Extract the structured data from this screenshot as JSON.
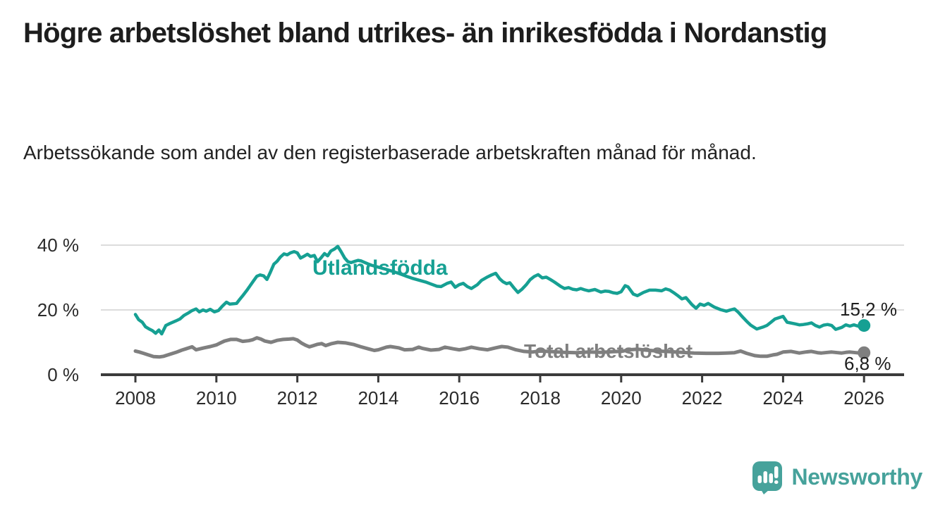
{
  "header": {
    "title": "Högre arbetslöshet bland utrikes- än inrikesfödda i Nordanstig",
    "subtitle": "Arbetssökande som andel av den registerbaserade arbetskraften månad för månad."
  },
  "footer": {
    "brand": "Newsworthy",
    "logo_icon": "bar-chart-speech-bubble-icon"
  },
  "colors": {
    "foreign_born_line": "#16a093",
    "total_line": "#7f7f7f",
    "grid": "#dcdcdc",
    "axis": "#3b3b3b",
    "text": "#1d1d1d",
    "brand_teal": "#46a29b"
  },
  "chart_data": {
    "type": "line",
    "title": "Högre arbetslöshet bland utrikes- än inrikesfödda i Nordanstig",
    "subtitle": "Arbetssökande som andel av den registerbaserade arbetskraften månad för månad.",
    "unit": "%",
    "grid": "horizontal-only",
    "legend_position": "inline-labels-on-lines",
    "x_axis": {
      "label": "",
      "tick_years": [
        2008,
        2010,
        2012,
        2014,
        2016,
        2018,
        2020,
        2022,
        2024,
        2026
      ],
      "range": [
        2007.1,
        2027.0
      ]
    },
    "y_axis": {
      "label": "",
      "unit": "%",
      "ticks": [
        {
          "label": "0 %",
          "value": 0
        },
        {
          "label": "20 %",
          "value": 20
        },
        {
          "label": "40 %",
          "value": 40
        }
      ],
      "grid_values": [
        20,
        40
      ],
      "range": [
        0,
        43
      ]
    },
    "series": [
      {
        "name": "Utlandsfödda",
        "color": "#16a093",
        "end_label": "15,2 %",
        "end_value": 15.2,
        "points": [
          [
            2008.0,
            18.6
          ],
          [
            2008.08,
            17.0
          ],
          [
            2008.17,
            16.2
          ],
          [
            2008.25,
            14.8
          ],
          [
            2008.33,
            14.2
          ],
          [
            2008.42,
            13.6
          ],
          [
            2008.5,
            12.8
          ],
          [
            2008.58,
            13.8
          ],
          [
            2008.65,
            12.6
          ],
          [
            2008.75,
            15.2
          ],
          [
            2008.85,
            15.8
          ],
          [
            2009.0,
            16.6
          ],
          [
            2009.1,
            17.2
          ],
          [
            2009.2,
            18.3
          ],
          [
            2009.3,
            19.0
          ],
          [
            2009.4,
            19.8
          ],
          [
            2009.5,
            20.3
          ],
          [
            2009.58,
            19.4
          ],
          [
            2009.67,
            20.0
          ],
          [
            2009.75,
            19.6
          ],
          [
            2009.85,
            20.2
          ],
          [
            2009.95,
            19.4
          ],
          [
            2010.05,
            19.8
          ],
          [
            2010.15,
            21.2
          ],
          [
            2010.25,
            22.4
          ],
          [
            2010.33,
            21.8
          ],
          [
            2010.42,
            21.9
          ],
          [
            2010.5,
            22.0
          ],
          [
            2010.58,
            23.3
          ],
          [
            2010.67,
            24.7
          ],
          [
            2010.75,
            26.0
          ],
          [
            2010.83,
            27.4
          ],
          [
            2010.92,
            29.0
          ],
          [
            2011.0,
            30.4
          ],
          [
            2011.08,
            30.8
          ],
          [
            2011.17,
            30.5
          ],
          [
            2011.25,
            29.4
          ],
          [
            2011.33,
            31.5
          ],
          [
            2011.42,
            34.1
          ],
          [
            2011.5,
            35.0
          ],
          [
            2011.58,
            36.3
          ],
          [
            2011.67,
            37.3
          ],
          [
            2011.75,
            37.0
          ],
          [
            2011.83,
            37.6
          ],
          [
            2011.92,
            38.0
          ],
          [
            2012.0,
            37.6
          ],
          [
            2012.08,
            36.0
          ],
          [
            2012.17,
            36.6
          ],
          [
            2012.25,
            37.2
          ],
          [
            2012.33,
            36.5
          ],
          [
            2012.42,
            36.8
          ],
          [
            2012.5,
            34.9
          ],
          [
            2012.58,
            36.0
          ],
          [
            2012.67,
            37.4
          ],
          [
            2012.75,
            36.7
          ],
          [
            2012.83,
            38.2
          ],
          [
            2012.92,
            38.8
          ],
          [
            2013.0,
            39.6
          ],
          [
            2013.08,
            38.0
          ],
          [
            2013.17,
            36.0
          ],
          [
            2013.25,
            34.9
          ],
          [
            2013.33,
            34.6
          ],
          [
            2013.42,
            35.0
          ],
          [
            2013.5,
            35.3
          ],
          [
            2013.58,
            35.1
          ],
          [
            2013.67,
            34.6
          ],
          [
            2013.75,
            34.2
          ],
          [
            2013.83,
            33.8
          ],
          [
            2014.0,
            33.2
          ],
          [
            2014.17,
            32.6
          ],
          [
            2014.33,
            32.0
          ],
          [
            2014.5,
            31.3
          ],
          [
            2014.67,
            30.5
          ],
          [
            2014.83,
            29.8
          ],
          [
            2015.0,
            29.2
          ],
          [
            2015.17,
            28.6
          ],
          [
            2015.3,
            28.0
          ],
          [
            2015.45,
            27.3
          ],
          [
            2015.55,
            27.2
          ],
          [
            2015.7,
            28.2
          ],
          [
            2015.8,
            28.6
          ],
          [
            2015.9,
            27.0
          ],
          [
            2016.0,
            27.8
          ],
          [
            2016.1,
            28.2
          ],
          [
            2016.2,
            27.2
          ],
          [
            2016.3,
            26.6
          ],
          [
            2016.45,
            27.8
          ],
          [
            2016.55,
            29.1
          ],
          [
            2016.7,
            30.2
          ],
          [
            2016.8,
            30.8
          ],
          [
            2016.9,
            31.3
          ],
          [
            2017.0,
            29.6
          ],
          [
            2017.08,
            28.7
          ],
          [
            2017.17,
            28.1
          ],
          [
            2017.25,
            28.4
          ],
          [
            2017.35,
            26.8
          ],
          [
            2017.45,
            25.4
          ],
          [
            2017.55,
            26.4
          ],
          [
            2017.65,
            27.7
          ],
          [
            2017.75,
            29.3
          ],
          [
            2017.85,
            30.3
          ],
          [
            2017.95,
            30.9
          ],
          [
            2018.05,
            29.9
          ],
          [
            2018.15,
            30.1
          ],
          [
            2018.25,
            29.4
          ],
          [
            2018.35,
            28.6
          ],
          [
            2018.5,
            27.3
          ],
          [
            2018.6,
            26.6
          ],
          [
            2018.7,
            26.9
          ],
          [
            2018.8,
            26.4
          ],
          [
            2018.9,
            26.2
          ],
          [
            2019.0,
            26.6
          ],
          [
            2019.1,
            26.2
          ],
          [
            2019.2,
            25.9
          ],
          [
            2019.35,
            26.3
          ],
          [
            2019.5,
            25.5
          ],
          [
            2019.6,
            25.8
          ],
          [
            2019.7,
            25.7
          ],
          [
            2019.8,
            25.3
          ],
          [
            2019.9,
            25.1
          ],
          [
            2020.0,
            25.6
          ],
          [
            2020.1,
            27.5
          ],
          [
            2020.17,
            27.1
          ],
          [
            2020.3,
            24.9
          ],
          [
            2020.4,
            24.4
          ],
          [
            2020.55,
            25.4
          ],
          [
            2020.7,
            26.1
          ],
          [
            2020.85,
            26.1
          ],
          [
            2021.0,
            25.9
          ],
          [
            2021.1,
            26.5
          ],
          [
            2021.2,
            26.1
          ],
          [
            2021.3,
            25.3
          ],
          [
            2021.4,
            24.4
          ],
          [
            2021.5,
            23.4
          ],
          [
            2021.6,
            23.8
          ],
          [
            2021.75,
            21.6
          ],
          [
            2021.85,
            20.5
          ],
          [
            2021.95,
            21.8
          ],
          [
            2022.05,
            21.4
          ],
          [
            2022.15,
            22.0
          ],
          [
            2022.3,
            20.9
          ],
          [
            2022.45,
            20.1
          ],
          [
            2022.6,
            19.6
          ],
          [
            2022.7,
            20.0
          ],
          [
            2022.8,
            20.3
          ],
          [
            2022.9,
            19.2
          ],
          [
            2023.0,
            17.8
          ],
          [
            2023.1,
            16.5
          ],
          [
            2023.2,
            15.3
          ],
          [
            2023.35,
            14.1
          ],
          [
            2023.5,
            14.7
          ],
          [
            2023.6,
            15.2
          ],
          [
            2023.7,
            16.2
          ],
          [
            2023.8,
            17.2
          ],
          [
            2023.9,
            17.6
          ],
          [
            2024.0,
            18.0
          ],
          [
            2024.1,
            16.2
          ],
          [
            2024.3,
            15.7
          ],
          [
            2024.4,
            15.4
          ],
          [
            2024.5,
            15.5
          ],
          [
            2024.6,
            15.7
          ],
          [
            2024.7,
            16.0
          ],
          [
            2024.8,
            15.2
          ],
          [
            2024.9,
            14.7
          ],
          [
            2025.0,
            15.3
          ],
          [
            2025.1,
            15.5
          ],
          [
            2025.2,
            15.2
          ],
          [
            2025.3,
            14.0
          ],
          [
            2025.45,
            14.6
          ],
          [
            2025.55,
            15.4
          ],
          [
            2025.65,
            15.0
          ],
          [
            2025.75,
            15.4
          ],
          [
            2025.85,
            15.0
          ],
          [
            2026.0,
            15.2
          ]
        ]
      },
      {
        "name": "Total arbetslöshet",
        "color": "#7f7f7f",
        "end_label": "6,8 %",
        "end_value": 6.8,
        "points": [
          [
            2008.0,
            7.3
          ],
          [
            2008.1,
            7.0
          ],
          [
            2008.2,
            6.6
          ],
          [
            2008.3,
            6.2
          ],
          [
            2008.45,
            5.6
          ],
          [
            2008.6,
            5.5
          ],
          [
            2008.7,
            5.7
          ],
          [
            2008.85,
            6.3
          ],
          [
            2009.0,
            6.9
          ],
          [
            2009.15,
            7.6
          ],
          [
            2009.25,
            8.0
          ],
          [
            2009.4,
            8.6
          ],
          [
            2009.5,
            7.7
          ],
          [
            2009.6,
            8.0
          ],
          [
            2009.7,
            8.3
          ],
          [
            2009.85,
            8.7
          ],
          [
            2010.0,
            9.2
          ],
          [
            2010.1,
            9.8
          ],
          [
            2010.2,
            10.4
          ],
          [
            2010.35,
            10.9
          ],
          [
            2010.5,
            10.9
          ],
          [
            2010.65,
            10.3
          ],
          [
            2010.8,
            10.5
          ],
          [
            2010.9,
            10.8
          ],
          [
            2011.0,
            11.4
          ],
          [
            2011.1,
            11.0
          ],
          [
            2011.2,
            10.4
          ],
          [
            2011.35,
            10.0
          ],
          [
            2011.5,
            10.6
          ],
          [
            2011.65,
            10.9
          ],
          [
            2011.8,
            11.0
          ],
          [
            2011.9,
            11.1
          ],
          [
            2012.0,
            10.7
          ],
          [
            2012.1,
            9.8
          ],
          [
            2012.2,
            9.1
          ],
          [
            2012.3,
            8.6
          ],
          [
            2012.4,
            9.0
          ],
          [
            2012.5,
            9.4
          ],
          [
            2012.6,
            9.6
          ],
          [
            2012.7,
            9.0
          ],
          [
            2012.85,
            9.6
          ],
          [
            2013.0,
            10.0
          ],
          [
            2013.2,
            9.8
          ],
          [
            2013.4,
            9.3
          ],
          [
            2013.55,
            8.7
          ],
          [
            2013.75,
            8.0
          ],
          [
            2013.9,
            7.5
          ],
          [
            2014.0,
            7.7
          ],
          [
            2014.2,
            8.5
          ],
          [
            2014.3,
            8.7
          ],
          [
            2014.5,
            8.3
          ],
          [
            2014.65,
            7.7
          ],
          [
            2014.85,
            7.8
          ],
          [
            2015.0,
            8.5
          ],
          [
            2015.1,
            8.1
          ],
          [
            2015.3,
            7.6
          ],
          [
            2015.5,
            7.8
          ],
          [
            2015.65,
            8.5
          ],
          [
            2015.85,
            8.0
          ],
          [
            2016.0,
            7.7
          ],
          [
            2016.15,
            8.0
          ],
          [
            2016.3,
            8.5
          ],
          [
            2016.5,
            8.0
          ],
          [
            2016.7,
            7.7
          ],
          [
            2016.9,
            8.3
          ],
          [
            2017.05,
            8.7
          ],
          [
            2017.2,
            8.5
          ],
          [
            2017.4,
            7.7
          ],
          [
            2017.6,
            7.2
          ],
          [
            2017.8,
            7.0
          ],
          [
            2018.0,
            7.3
          ],
          [
            2018.3,
            7.1
          ],
          [
            2018.6,
            6.9
          ],
          [
            2018.9,
            6.8
          ],
          [
            2019.2,
            7.0
          ],
          [
            2019.5,
            6.9
          ],
          [
            2019.8,
            7.1
          ],
          [
            2020.0,
            7.2
          ],
          [
            2020.2,
            7.7
          ],
          [
            2020.4,
            7.9
          ],
          [
            2020.6,
            7.6
          ],
          [
            2020.9,
            7.3
          ],
          [
            2021.2,
            7.1
          ],
          [
            2021.5,
            6.9
          ],
          [
            2021.8,
            6.7
          ],
          [
            2022.1,
            6.6
          ],
          [
            2022.4,
            6.6
          ],
          [
            2022.6,
            6.7
          ],
          [
            2022.8,
            6.8
          ],
          [
            2022.95,
            7.3
          ],
          [
            2023.1,
            6.6
          ],
          [
            2023.3,
            5.9
          ],
          [
            2023.45,
            5.7
          ],
          [
            2023.6,
            5.7
          ],
          [
            2023.75,
            6.1
          ],
          [
            2023.85,
            6.3
          ],
          [
            2024.0,
            7.0
          ],
          [
            2024.2,
            7.2
          ],
          [
            2024.4,
            6.7
          ],
          [
            2024.55,
            7.0
          ],
          [
            2024.7,
            7.2
          ],
          [
            2024.85,
            6.8
          ],
          [
            2024.95,
            6.7
          ],
          [
            2025.1,
            6.9
          ],
          [
            2025.2,
            7.0
          ],
          [
            2025.35,
            6.8
          ],
          [
            2025.45,
            6.7
          ],
          [
            2025.55,
            6.9
          ],
          [
            2025.65,
            7.0
          ],
          [
            2025.8,
            6.8
          ],
          [
            2025.9,
            6.7
          ],
          [
            2026.0,
            6.8
          ]
        ]
      }
    ]
  }
}
